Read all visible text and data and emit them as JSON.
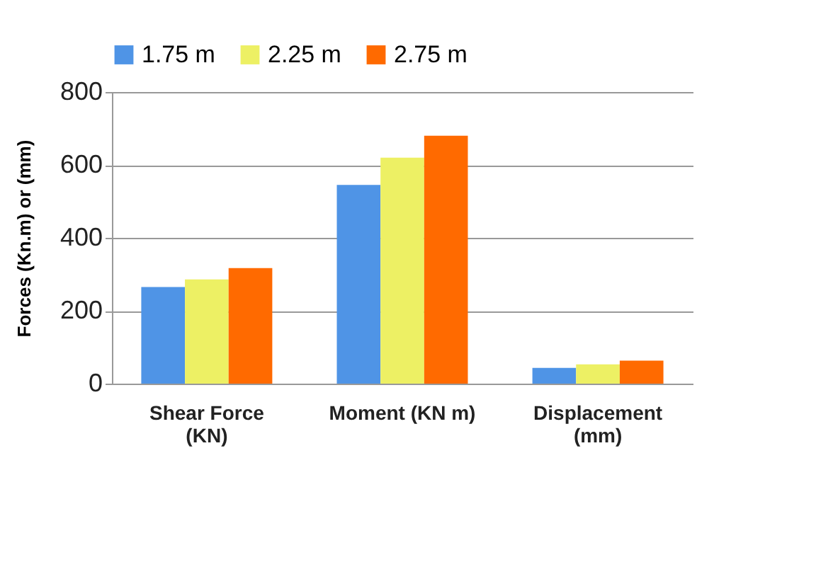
{
  "chart_data": {
    "type": "bar",
    "ylabel": "Forces (Kn.m) or (mm)",
    "categories": [
      "Shear Force (KN)",
      "Moment (KN m)",
      "Displacement (mm)"
    ],
    "series": [
      {
        "name": "1.75 m",
        "color": "#4f94e6",
        "values": [
          265,
          545,
          43
        ]
      },
      {
        "name": "2.25 m",
        "color": "#edf064",
        "values": [
          286,
          620,
          53
        ]
      },
      {
        "name": "2.75 m",
        "color": "#ff6a00",
        "values": [
          317,
          680,
          63
        ]
      }
    ],
    "ylim": [
      0,
      800
    ],
    "yticks": [
      0,
      200,
      400,
      600,
      800
    ],
    "grid": "y",
    "legend": "top"
  }
}
